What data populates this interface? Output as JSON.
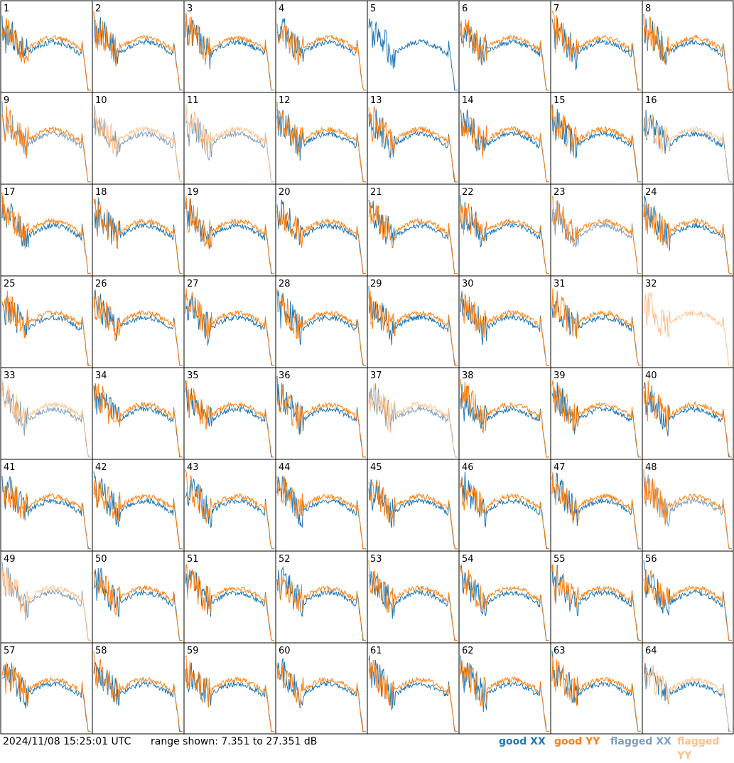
{
  "chart_data": {
    "type": "line",
    "layout": "small-multiples",
    "rows": 8,
    "cols": 8,
    "panels": [
      {
        "label": "1",
        "xx": "good",
        "yy": "good"
      },
      {
        "label": "2",
        "xx": "good",
        "yy": "good"
      },
      {
        "label": "3",
        "xx": "good",
        "yy": "good"
      },
      {
        "label": "4",
        "xx": "good",
        "yy": "good"
      },
      {
        "label": "5",
        "xx": "good",
        "yy": "none"
      },
      {
        "label": "6",
        "xx": "good",
        "yy": "good"
      },
      {
        "label": "7",
        "xx": "good",
        "yy": "good"
      },
      {
        "label": "8",
        "xx": "good",
        "yy": "good"
      },
      {
        "label": "9",
        "xx": "flagged",
        "yy": "good"
      },
      {
        "label": "10",
        "xx": "flagged",
        "yy": "flagged"
      },
      {
        "label": "11",
        "xx": "flagged",
        "yy": "flagged"
      },
      {
        "label": "12",
        "xx": "good",
        "yy": "good"
      },
      {
        "label": "13",
        "xx": "good",
        "yy": "good"
      },
      {
        "label": "14",
        "xx": "good",
        "yy": "good"
      },
      {
        "label": "15",
        "xx": "good",
        "yy": "good"
      },
      {
        "label": "16",
        "xx": "good",
        "yy": "flagged"
      },
      {
        "label": "17",
        "xx": "good",
        "yy": "good"
      },
      {
        "label": "18",
        "xx": "good",
        "yy": "good"
      },
      {
        "label": "19",
        "xx": "good",
        "yy": "good"
      },
      {
        "label": "20",
        "xx": "good",
        "yy": "good"
      },
      {
        "label": "21",
        "xx": "good",
        "yy": "good"
      },
      {
        "label": "22",
        "xx": "good",
        "yy": "good"
      },
      {
        "label": "23",
        "xx": "flagged",
        "yy": "good"
      },
      {
        "label": "24",
        "xx": "good",
        "yy": "good"
      },
      {
        "label": "25",
        "xx": "good",
        "yy": "good"
      },
      {
        "label": "26",
        "xx": "good",
        "yy": "good"
      },
      {
        "label": "27",
        "xx": "good",
        "yy": "good"
      },
      {
        "label": "28",
        "xx": "good",
        "yy": "good"
      },
      {
        "label": "29",
        "xx": "good",
        "yy": "good"
      },
      {
        "label": "30",
        "xx": "good",
        "yy": "good"
      },
      {
        "label": "31",
        "xx": "good",
        "yy": "good"
      },
      {
        "label": "32",
        "xx": "none",
        "yy": "flagged"
      },
      {
        "label": "33",
        "xx": "flagged",
        "yy": "flagged"
      },
      {
        "label": "34",
        "xx": "good",
        "yy": "good"
      },
      {
        "label": "35",
        "xx": "good",
        "yy": "good"
      },
      {
        "label": "36",
        "xx": "good",
        "yy": "good"
      },
      {
        "label": "37",
        "xx": "flagged",
        "yy": "flagged"
      },
      {
        "label": "38",
        "xx": "good",
        "yy": "good"
      },
      {
        "label": "39",
        "xx": "good",
        "yy": "good"
      },
      {
        "label": "40",
        "xx": "good",
        "yy": "good"
      },
      {
        "label": "41",
        "xx": "good",
        "yy": "good"
      },
      {
        "label": "42",
        "xx": "good",
        "yy": "good"
      },
      {
        "label": "43",
        "xx": "good",
        "yy": "good"
      },
      {
        "label": "44",
        "xx": "good",
        "yy": "good"
      },
      {
        "label": "45",
        "xx": "good",
        "yy": "good"
      },
      {
        "label": "46",
        "xx": "good",
        "yy": "good"
      },
      {
        "label": "47",
        "xx": "good",
        "yy": "good"
      },
      {
        "label": "48",
        "xx": "flagged",
        "yy": "good"
      },
      {
        "label": "49",
        "xx": "flagged",
        "yy": "flagged"
      },
      {
        "label": "50",
        "xx": "good",
        "yy": "good"
      },
      {
        "label": "51",
        "xx": "good",
        "yy": "good"
      },
      {
        "label": "52",
        "xx": "good",
        "yy": "good"
      },
      {
        "label": "53",
        "xx": "good",
        "yy": "good"
      },
      {
        "label": "54",
        "xx": "good",
        "yy": "good"
      },
      {
        "label": "55",
        "xx": "good",
        "yy": "good"
      },
      {
        "label": "56",
        "xx": "good",
        "yy": "good"
      },
      {
        "label": "57",
        "xx": "good",
        "yy": "good"
      },
      {
        "label": "58",
        "xx": "good",
        "yy": "good"
      },
      {
        "label": "59",
        "xx": "good",
        "yy": "good"
      },
      {
        "label": "60",
        "xx": "good",
        "yy": "good"
      },
      {
        "label": "61",
        "xx": "good",
        "yy": "good"
      },
      {
        "label": "62",
        "xx": "good",
        "yy": "good"
      },
      {
        "label": "63",
        "xx": "good",
        "yy": "good"
      },
      {
        "label": "64",
        "xx": "good",
        "yy": "flagged"
      }
    ],
    "y_range_db": [
      7.351,
      27.351
    ],
    "colors": {
      "good_xx": "#1f77b4",
      "good_yy": "#ff7f0e",
      "flagged_xx": "#7f9db8",
      "flagged_yy": "#ffbf8a"
    },
    "legend": [
      "good XX",
      "good YY",
      "flagged XX",
      "flagged YY"
    ]
  },
  "footer": {
    "timestamp": "2024/11/08 15:25:01 UTC",
    "range": "range shown: 7.351 to 27.351 dB",
    "legend_good_xx": "good XX",
    "legend_good_yy": "good YY",
    "legend_flagged_xx": "flagged XX",
    "legend_flagged_yy": "flagged YY"
  }
}
